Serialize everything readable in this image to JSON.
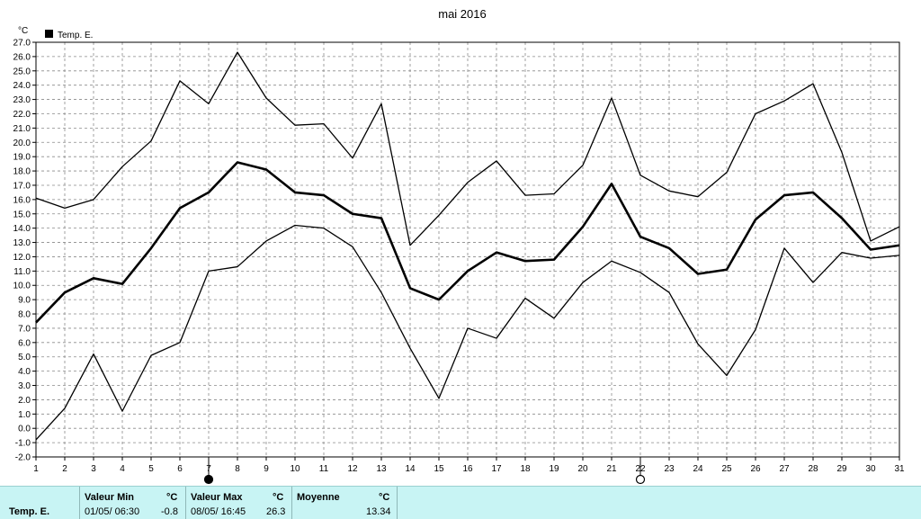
{
  "chart_data": {
    "type": "line",
    "title": "mai 2016",
    "ylabel": "°C",
    "legend": {
      "label": "Temp. E.",
      "placement": "top-left"
    },
    "x": [
      1,
      2,
      3,
      4,
      5,
      6,
      7,
      8,
      9,
      10,
      11,
      12,
      13,
      14,
      15,
      16,
      17,
      18,
      19,
      20,
      21,
      22,
      23,
      24,
      25,
      26,
      27,
      28,
      29,
      30,
      31
    ],
    "xlim": [
      1,
      31
    ],
    "ylim": [
      -2.0,
      27.0
    ],
    "ytick_step": 1.0,
    "grid": true,
    "series": [
      {
        "name": "",
        "role": "max",
        "values": [
          16.1,
          15.4,
          16.0,
          18.3,
          20.1,
          24.3,
          22.7,
          26.3,
          23.1,
          21.2,
          21.3,
          18.9,
          22.7,
          12.8,
          14.9,
          17.2,
          18.7,
          16.3,
          16.4,
          18.4,
          23.1,
          17.7,
          16.6,
          16.2,
          17.9,
          22.0,
          22.9,
          24.1,
          19.3,
          13.1,
          14.1
        ]
      },
      {
        "name": "",
        "role": "mean",
        "values": [
          7.4,
          9.5,
          10.5,
          10.1,
          12.6,
          15.4,
          16.5,
          18.6,
          18.1,
          16.5,
          16.3,
          15.0,
          14.7,
          9.8,
          9.0,
          11.0,
          12.3,
          11.7,
          11.8,
          14.1,
          17.1,
          13.4,
          12.6,
          10.8,
          11.1,
          14.6,
          16.3,
          16.5,
          14.7,
          12.5,
          12.8
        ]
      },
      {
        "name": "",
        "role": "min",
        "values": [
          -0.8,
          1.4,
          5.2,
          1.2,
          5.1,
          6.0,
          11.0,
          11.3,
          13.1,
          14.2,
          14.0,
          12.7,
          9.5,
          5.6,
          2.1,
          7.0,
          6.3,
          9.1,
          7.7,
          10.2,
          11.7,
          10.9,
          9.5,
          5.9,
          3.7,
          6.9,
          12.6,
          10.2,
          12.3,
          11.9,
          12.1
        ]
      }
    ],
    "moon_markers": [
      {
        "day": 7,
        "phase": "new"
      },
      {
        "day": 22,
        "phase": "full"
      }
    ],
    "colors": {
      "line": "#000000",
      "grid": "#8a8a8a",
      "footer_bg": "#c8f4f4"
    }
  },
  "stats": {
    "row_label": "Temp. E.",
    "min": {
      "header": "Valeur Min",
      "unit": "°C",
      "date": "01/05/ 06:30",
      "value": "-0.8"
    },
    "max": {
      "header": "Valeur Max",
      "unit": "°C",
      "date": "08/05/ 16:45",
      "value": "26.3"
    },
    "mean": {
      "header": "Moyenne",
      "unit": "°C",
      "value": "13.34"
    }
  }
}
